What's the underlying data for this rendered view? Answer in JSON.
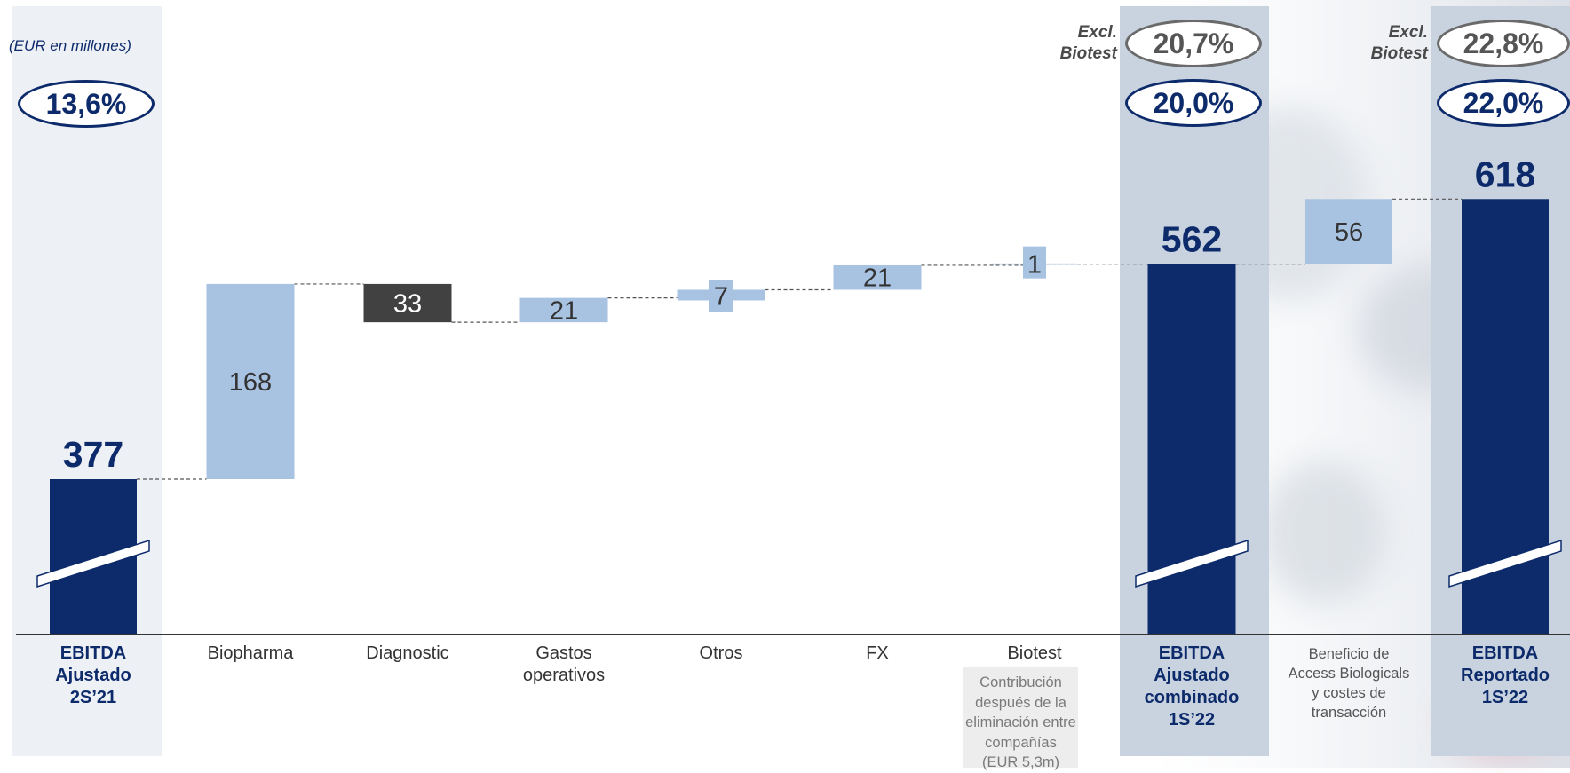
{
  "unit_note": "(EUR en millones)",
  "margins": {
    "start": "13,6%",
    "combinado": "20,0%",
    "combinado_excl": "20,7%",
    "reportado": "22,0%",
    "reportado_excl": "22,8%",
    "excl_label_line1": "Excl.",
    "excl_label_line2": "Biotest"
  },
  "biotest_note": [
    "Contribución",
    "después de la",
    "eliminación entre",
    "compañías",
    "(EUR 5,3m)"
  ],
  "colors": {
    "total": "#0d2b6b",
    "increase": "#a8c2e2",
    "decrease": "#414141",
    "label_text": "#333333",
    "band_light": "#edf1f6",
    "band_mid": "#c9d3e0"
  },
  "chart_data": {
    "type": "bar",
    "subtype": "waterfall",
    "unit": "EUR en millones",
    "axis_break_on_totals": true,
    "steps": [
      {
        "label": [
          "EBITDA",
          "Ajustado",
          "2S’21"
        ],
        "kind": "total",
        "value": 377,
        "display": "377"
      },
      {
        "label": [
          "Biopharma"
        ],
        "kind": "increase",
        "value": 168,
        "display": "168"
      },
      {
        "label": [
          "Diagnostic"
        ],
        "kind": "decrease",
        "value": -33,
        "display": "33"
      },
      {
        "label": [
          "Gastos",
          "operativos"
        ],
        "kind": "increase",
        "value": 21,
        "display": "21"
      },
      {
        "label": [
          "Otros"
        ],
        "kind": "increase",
        "value": 7,
        "display": "7"
      },
      {
        "label": [
          "FX"
        ],
        "kind": "increase",
        "value": 21,
        "display": "21"
      },
      {
        "label": [
          "Biotest"
        ],
        "kind": "increase",
        "value": 1,
        "display": "1"
      },
      {
        "label": [
          "EBITDA",
          "Ajustado",
          "combinado",
          "1S’22"
        ],
        "kind": "total",
        "value": 562,
        "display": "562"
      },
      {
        "label": [
          "Beneficio de",
          "Access Biologicals",
          "y costes de",
          "transacción"
        ],
        "kind": "increase",
        "value": 56,
        "display": "56"
      },
      {
        "label": [
          "EBITDA",
          "Reportado",
          "1S’22"
        ],
        "kind": "total",
        "value": 618,
        "display": "618"
      }
    ]
  }
}
